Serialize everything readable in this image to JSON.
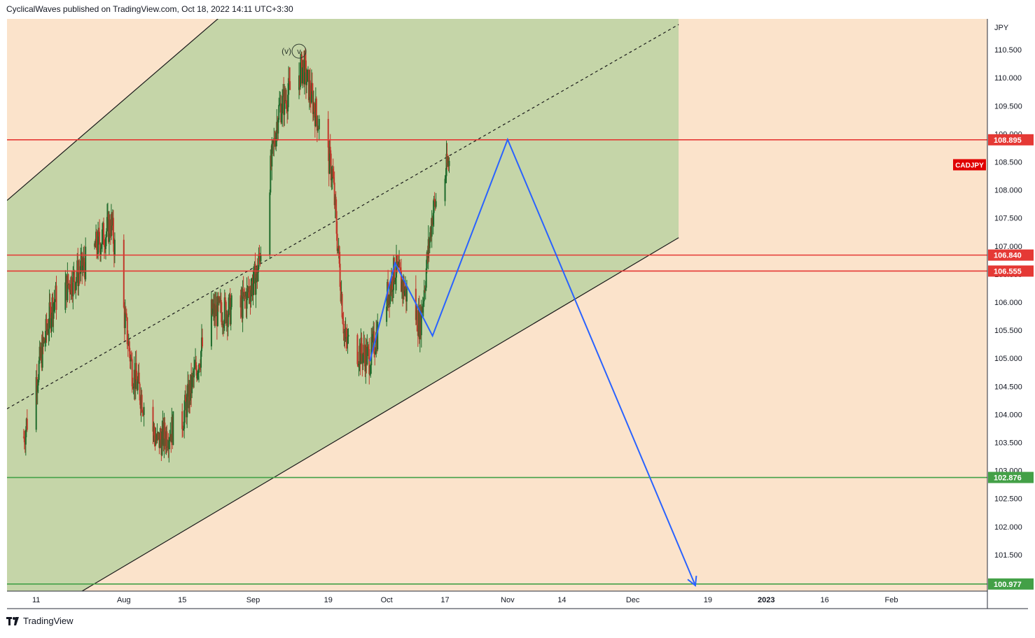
{
  "header": {
    "publish_text": "CyclicalWaves published on TradingView.com, Oct 18, 2022 14:11 UTC+3:30"
  },
  "footer": {
    "brand": "TradingView"
  },
  "colors": {
    "background": "#fbe3cb",
    "channel_fill": "#c5d5a8",
    "up_candle": "#1f6b2c",
    "down_candle": "#c0392b",
    "resistance": "#e53935",
    "support": "#43a047",
    "projection": "#2962ff",
    "symbol_badge": "#e00000"
  },
  "chart_data": {
    "type": "candlestick",
    "symbol": "CADJPY",
    "currency_label": "JPY",
    "ylim": [
      100.85,
      111.05
    ],
    "y_ticks": [
      "110.500",
      "110.000",
      "109.500",
      "109.000",
      "108.500",
      "108.000",
      "107.500",
      "107.000",
      "106.500",
      "106.000",
      "105.500",
      "105.000",
      "104.500",
      "104.000",
      "103.500",
      "103.000",
      "102.500",
      "102.000",
      "101.500"
    ],
    "x_ticks": [
      "11",
      "Aug",
      "15",
      "Sep",
      "19",
      "Oct",
      "17",
      "Nov",
      "14",
      "Dec",
      "19",
      "2023",
      "16",
      "Feb"
    ],
    "x_tick_bold": [
      "2023"
    ],
    "horizontal_levels": [
      {
        "value": 108.895,
        "label": "108.895",
        "color": "#e53935"
      },
      {
        "value": 106.84,
        "label": "106.840",
        "color": "#e53935"
      },
      {
        "value": 106.555,
        "label": "106.555",
        "color": "#e53935"
      },
      {
        "value": 102.876,
        "label": "102.876",
        "color": "#43a047"
      },
      {
        "value": 100.977,
        "label": "100.977",
        "color": "#43a047"
      }
    ],
    "price_path": {
      "dates": [
        "2022-07-08",
        "2022-07-15",
        "2022-07-22",
        "2022-07-29",
        "2022-08-03",
        "2022-08-09",
        "2022-08-15",
        "2022-08-22",
        "2022-08-29",
        "2022-09-02",
        "2022-09-07",
        "2022-09-13",
        "2022-09-20",
        "2022-09-23",
        "2022-09-29",
        "2022-10-05",
        "2022-10-11",
        "2022-10-14",
        "2022-10-18"
      ],
      "values": [
        103.6,
        106.0,
        106.6,
        107.4,
        104.8,
        103.5,
        103.9,
        105.8,
        105.9,
        106.5,
        109.4,
        110.2,
        108.3,
        105.3,
        105.0,
        106.6,
        105.6,
        107.6,
        108.5
      ]
    },
    "annotations": [
      {
        "text": "(v)",
        "date": "2022-09-09",
        "value": 110.45
      },
      {
        "text": "v",
        "date": "2022-09-12",
        "value": 110.45,
        "circled": true
      }
    ],
    "projection_path": [
      {
        "date": "2022-09-29",
        "value": 104.95
      },
      {
        "date": "2022-10-05",
        "value": 106.7
      },
      {
        "date": "2022-10-14",
        "value": 105.4
      },
      {
        "date": "2022-11-01",
        "value": 108.9
      },
      {
        "date": "2022-12-16",
        "value": 100.95
      }
    ],
    "channel": {
      "upper": [
        {
          "date": "2022-07-03",
          "value": 107.75
        },
        {
          "date": "2022-08-29",
          "value": 111.4
        }
      ],
      "mid": [
        {
          "date": "2022-07-04",
          "value": 104.1
        },
        {
          "date": "2022-12-12",
          "value": 110.95
        }
      ],
      "lower": [
        {
          "date": "2022-07-22",
          "value": 100.85
        },
        {
          "date": "2022-12-12",
          "value": 107.15
        }
      ],
      "box_end": "2022-12-12"
    }
  }
}
